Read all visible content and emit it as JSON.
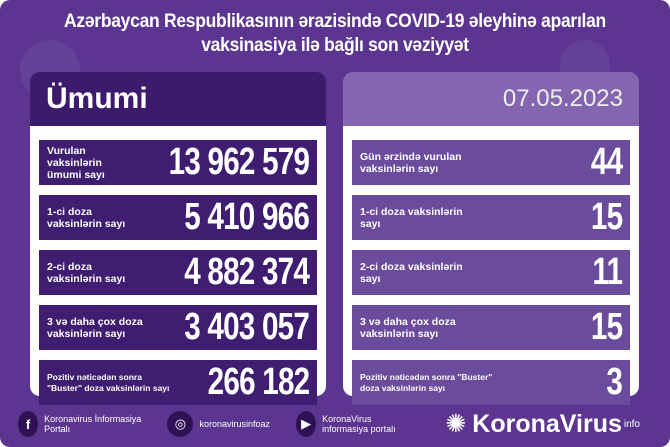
{
  "title_lines": [
    "Azərbaycan Respublikasının ərazisində COVID-19 əleyhinə aparılan",
    "vaksinasiya ilə bağlı son vəziyyət"
  ],
  "left": {
    "heading": "Ümumi",
    "rows": [
      {
        "label": "Vurulan vaksinlərin ümumi sayı",
        "value": "13 962 579"
      },
      {
        "label": "1-ci doza vaksinlərin sayı",
        "value": "5 410 966"
      },
      {
        "label": "2-ci doza vaksinlərin sayı",
        "value": "4 882 374"
      },
      {
        "label": "3 və daha çox doza vaksinlərin sayı",
        "value": "3 403 057"
      },
      {
        "label": "Pozitiv nəticədən sonra \"Buster\" doza vaksinlərin sayı",
        "value": "266 182"
      }
    ]
  },
  "right": {
    "date": "07.05.2023",
    "rows": [
      {
        "label": "Gün ərzində vurulan vaksinlərin sayı",
        "value": "44"
      },
      {
        "label": "1-ci doza vaksinlərin sayı",
        "value": "15"
      },
      {
        "label": "2-ci doza vaksinlərin sayı",
        "value": "11"
      },
      {
        "label": "3 və daha çox doza vaksinlərin sayı",
        "value": "15"
      },
      {
        "label": "Pozitiv nəticədən sonra \"Buster\" doza vaksinlərin sayı",
        "value": "3"
      }
    ]
  },
  "footer": {
    "facebook": "Koronavirus İnformasiya Portalı",
    "instagram": "koronavirusinfoaz",
    "youtube": "KoronaVirus informasiya portalı",
    "brand": "KoronaVirus",
    "brand_sup": "info"
  },
  "colors": {
    "background": "#5b3590",
    "left_row": "#3f1d70",
    "right_row": "#6b4c9c"
  }
}
